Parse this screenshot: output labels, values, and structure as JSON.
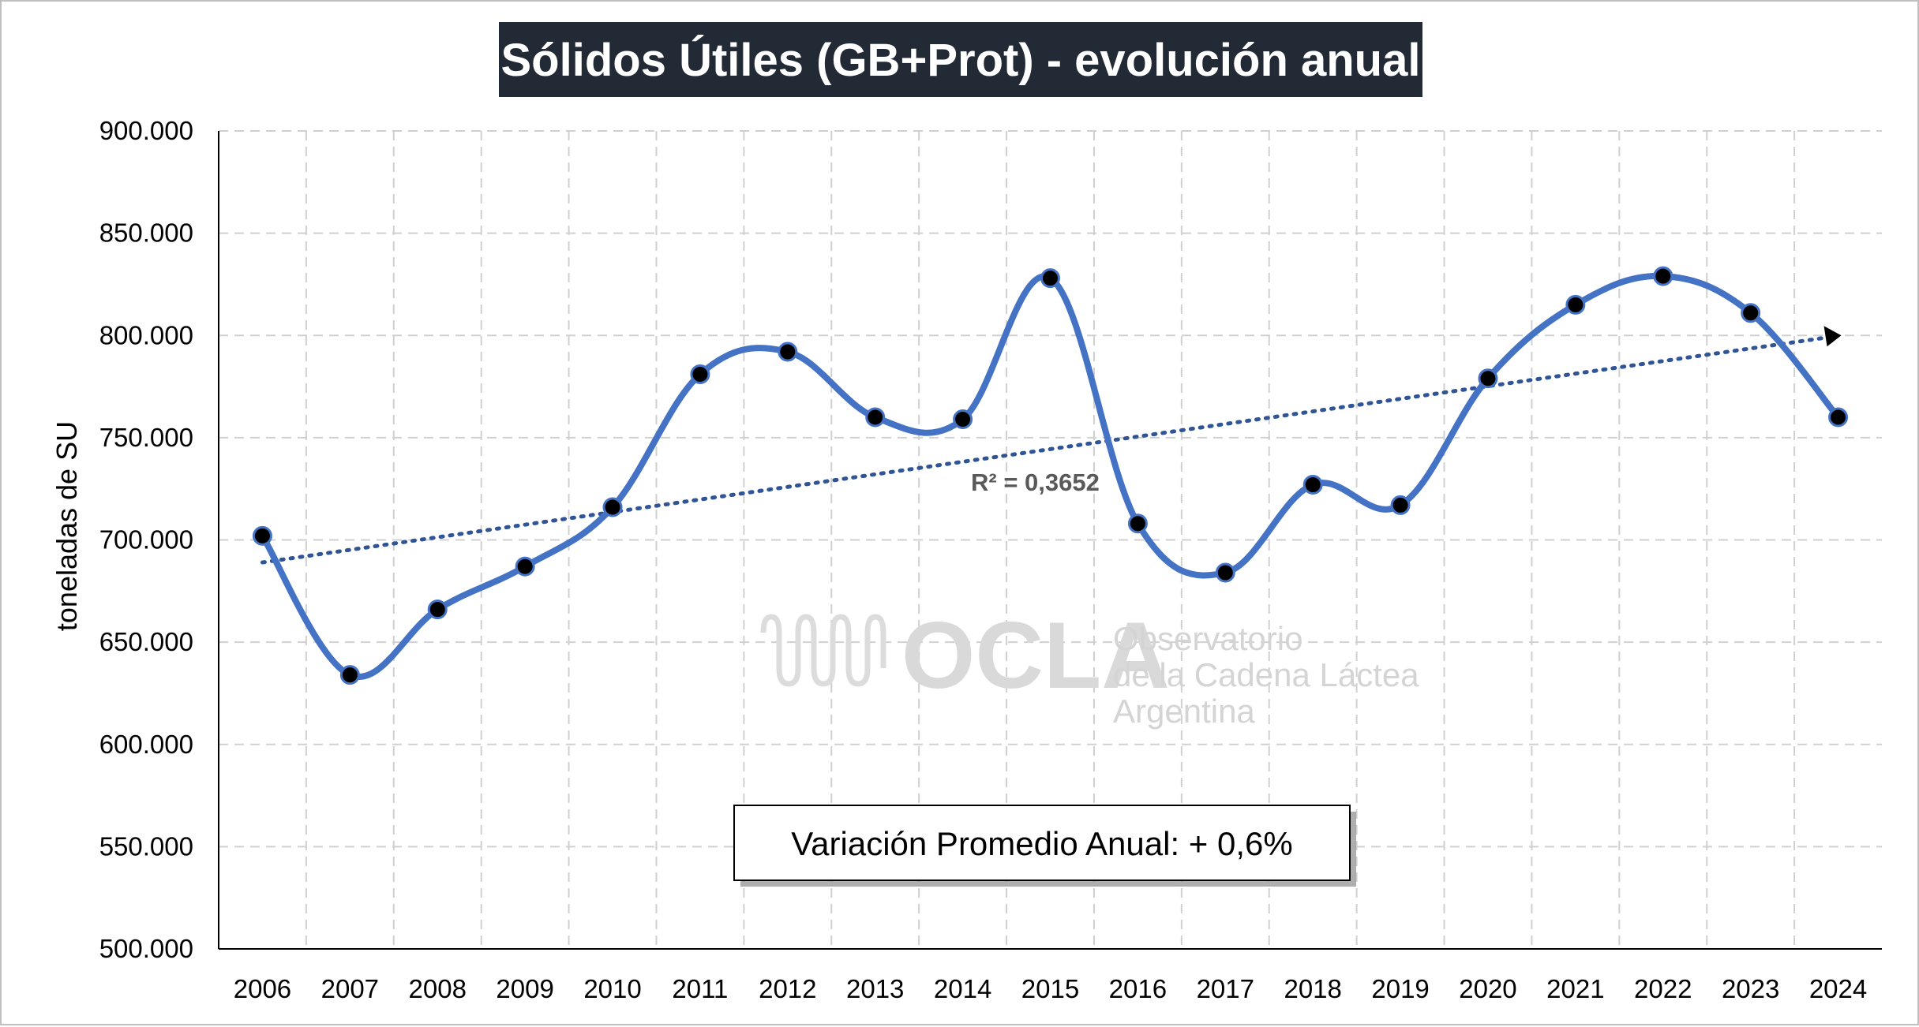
{
  "chart_data": {
    "type": "line",
    "title": "Sólidos Útiles (GB+Prot) - evolución anual",
    "ylabel": "toneladas de SU",
    "xlabel": "",
    "categories": [
      "2006",
      "2007",
      "2008",
      "2009",
      "2010",
      "2011",
      "2012",
      "2013",
      "2014",
      "2015",
      "2016",
      "2017",
      "2018",
      "2019",
      "2020",
      "2021",
      "2022",
      "2023",
      "2024"
    ],
    "series": [
      {
        "values": [
          702000,
          634000,
          666000,
          687000,
          716000,
          781000,
          792000,
          760000,
          759000,
          828000,
          708000,
          684000,
          727000,
          717000,
          779000,
          815000,
          829000,
          811000,
          760000
        ],
        "color": "#4472c4",
        "marker_color": "#000000"
      }
    ],
    "trendline": {
      "type": "linear",
      "start": 689000,
      "end": 800000,
      "color": "#2f5597",
      "style": "dotted",
      "r2_label": "R² = 0,3652"
    },
    "ylim": [
      500000,
      900000
    ],
    "yticks": [
      500000,
      550000,
      600000,
      650000,
      700000,
      750000,
      800000,
      850000,
      900000
    ],
    "ytick_labels": [
      "500.000",
      "550.000",
      "600.000",
      "650.000",
      "700.000",
      "750.000",
      "800.000",
      "850.000",
      "900.000"
    ],
    "grid": true,
    "grid_style": "dashed",
    "annotation": "Variación Promedio Anual: + 0,6%",
    "title_bg": "#222a35"
  },
  "watermark": {
    "logo": "OCLA",
    "line1": "Observatorio",
    "line2": "de la Cadena Láctea",
    "line3": "Argentina"
  }
}
